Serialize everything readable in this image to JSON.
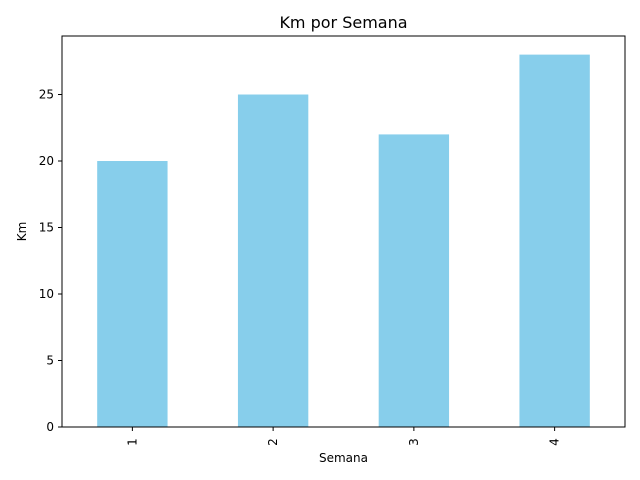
{
  "chart_data": {
    "type": "bar",
    "title": "Km por Semana",
    "xlabel": "Semana",
    "ylabel": "Km",
    "categories": [
      "1",
      "2",
      "3",
      "4"
    ],
    "values": [
      20,
      25,
      22,
      28
    ],
    "ylim": [
      0,
      29.4
    ],
    "yticks": [
      0,
      5,
      10,
      15,
      20,
      25
    ],
    "grid": false,
    "bar_color": "#87CEEB"
  }
}
